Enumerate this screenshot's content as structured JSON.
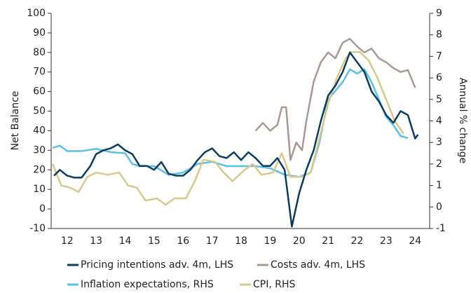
{
  "chart_data": {
    "type": "line",
    "ylabel": "Net Balance",
    "y2label": "Annual % change",
    "xlim": [
      11.95,
      25
    ],
    "xticks": [
      {
        "value": 12.5,
        "label": "12"
      },
      {
        "value": 13.5,
        "label": "13"
      },
      {
        "value": 14.5,
        "label": "14"
      },
      {
        "value": 15.5,
        "label": "15"
      },
      {
        "value": 16.5,
        "label": "16"
      },
      {
        "value": 17.5,
        "label": "17"
      },
      {
        "value": 18.5,
        "label": "18"
      },
      {
        "value": 19.5,
        "label": "19"
      },
      {
        "value": 20.5,
        "label": "20"
      },
      {
        "value": 21.5,
        "label": "21"
      },
      {
        "value": 22.5,
        "label": "22"
      },
      {
        "value": 23.5,
        "label": "23"
      },
      {
        "value": 24.5,
        "label": "24"
      }
    ],
    "ylim": [
      -10,
      100
    ],
    "yticks": [
      -10,
      0,
      10,
      20,
      30,
      40,
      50,
      60,
      70,
      80,
      90,
      100
    ],
    "y2lim": [
      -1,
      9
    ],
    "y2ticks": [
      -1,
      0,
      1,
      2,
      3,
      4,
      5,
      6,
      7,
      8,
      9
    ],
    "series": [
      {
        "name": "Pricing intentions adv. 4m, LHS",
        "color": "#0b3c5d",
        "x": [
          12.05,
          12.25,
          12.5,
          12.75,
          13.0,
          13.3,
          13.5,
          13.75,
          14.0,
          14.25,
          14.5,
          14.75,
          15.0,
          15.25,
          15.5,
          15.75,
          16.0,
          16.25,
          16.5,
          16.75,
          17.0,
          17.25,
          17.5,
          17.75,
          18.0,
          18.25,
          18.5,
          18.75,
          19.0,
          19.25,
          19.5,
          19.75,
          20.0,
          20.25,
          20.5,
          20.75,
          21.0,
          21.25,
          21.5,
          21.75,
          22.0,
          22.25,
          22.5,
          22.75,
          23.0,
          23.25,
          23.5,
          23.75,
          24.0,
          24.25,
          24.5,
          24.6
        ],
        "values": [
          17,
          20,
          17,
          16,
          16,
          22,
          28,
          30,
          31,
          33,
          30,
          28,
          22,
          22,
          20,
          24,
          18,
          17,
          17,
          20,
          25,
          29,
          31,
          27,
          26,
          29,
          25,
          29,
          26,
          22,
          22,
          26,
          20,
          -9,
          8,
          20,
          30,
          45,
          58,
          63,
          70,
          80,
          75,
          70,
          60,
          55,
          48,
          44,
          50,
          48,
          36,
          38
        ]
      },
      {
        "name": "Costs adv. 4m, LHS",
        "color": "#a89a93",
        "x": [
          19.0,
          19.25,
          19.5,
          19.75,
          19.9,
          20.05,
          20.2,
          20.4,
          20.6,
          20.75,
          21.0,
          21.25,
          21.5,
          21.75,
          22.0,
          22.25,
          22.5,
          22.75,
          23.0,
          23.25,
          23.5,
          23.75,
          24.0,
          24.25,
          24.5
        ],
        "values": [
          40,
          44,
          40,
          43,
          52,
          52,
          25,
          34,
          30,
          45,
          65,
          75,
          80,
          77,
          85,
          87,
          83,
          80,
          82,
          77,
          75,
          72,
          70,
          71,
          62
        ]
      },
      {
        "name": "Inflation expectations, RHS",
        "color": "#5bc0e8",
        "axis": "y2",
        "x": [
          12.0,
          12.25,
          12.5,
          13.0,
          13.5,
          14.0,
          14.5,
          14.75,
          15.0,
          15.5,
          16.0,
          16.5,
          17.0,
          17.5,
          18.0,
          18.5,
          19.0,
          19.5,
          20.0,
          20.5,
          20.9,
          21.2,
          21.5,
          21.75,
          22.0,
          22.25,
          22.5,
          22.75,
          23.0,
          23.25,
          23.5,
          23.75,
          24.0,
          24.25
        ],
        "values": [
          2.75,
          2.85,
          2.6,
          2.6,
          2.7,
          2.55,
          2.5,
          2.0,
          1.9,
          1.9,
          1.5,
          1.6,
          2.0,
          2.1,
          1.9,
          1.9,
          1.9,
          1.8,
          1.5,
          1.4,
          1.6,
          3.0,
          5.0,
          5.4,
          5.8,
          6.4,
          6.2,
          6.4,
          5.8,
          5.0,
          4.2,
          3.8,
          3.3,
          3.2
        ]
      },
      {
        "name": "CPI, RHS",
        "color": "#d8c88a",
        "axis": "y2",
        "x": [
          12.0,
          12.3,
          12.6,
          12.9,
          13.2,
          13.5,
          13.9,
          14.3,
          14.6,
          14.9,
          15.2,
          15.6,
          15.9,
          16.2,
          16.6,
          16.9,
          17.2,
          17.6,
          17.9,
          18.2,
          18.6,
          18.9,
          19.2,
          19.6,
          19.9,
          20.2,
          20.6,
          20.9,
          21.2,
          21.5,
          21.8,
          22.1,
          22.3,
          22.6,
          22.9,
          23.2,
          23.5,
          23.8,
          24.1
        ],
        "values": [
          2.0,
          1.0,
          0.9,
          0.7,
          1.4,
          1.6,
          1.5,
          1.6,
          1.0,
          0.9,
          0.3,
          0.4,
          0.1,
          0.4,
          0.4,
          1.2,
          2.2,
          2.1,
          1.6,
          1.2,
          1.7,
          2.0,
          1.5,
          1.6,
          2.5,
          1.4,
          1.4,
          1.6,
          3.2,
          4.8,
          6.0,
          6.9,
          7.2,
          7.2,
          6.8,
          6.0,
          5.0,
          4.0,
          3.4
        ]
      }
    ]
  }
}
